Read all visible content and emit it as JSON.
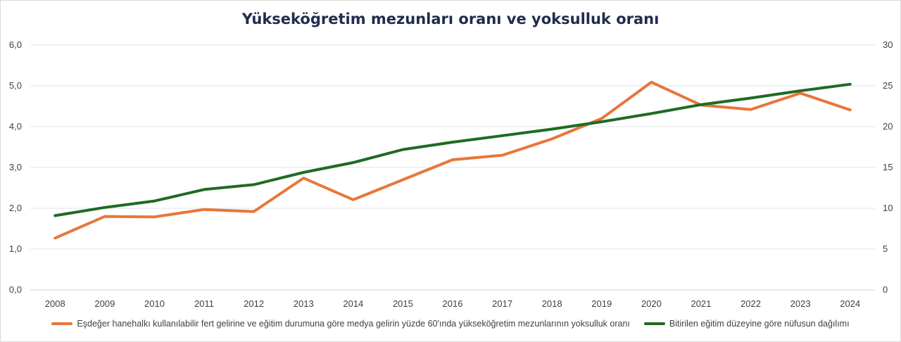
{
  "chart_data": {
    "type": "line",
    "title": "Yükseköğretim mezunları oranı ve yoksulluk oranı",
    "categories": [
      "2008",
      "2009",
      "2010",
      "2011",
      "2012",
      "2013",
      "2014",
      "2015",
      "2016",
      "2017",
      "2018",
      "2019",
      "2020",
      "2021",
      "2022",
      "2023",
      "2024"
    ],
    "y_left": {
      "ylim": [
        0,
        6
      ],
      "ticks": [
        "0,0",
        "1,0",
        "2,0",
        "3,0",
        "4,0",
        "5,0",
        "6,0"
      ]
    },
    "y_right": {
      "ylim": [
        0,
        30
      ],
      "ticks": [
        "0",
        "5",
        "10",
        "15",
        "20",
        "25",
        "30"
      ]
    },
    "grid": true,
    "legend_position": "bottom",
    "series": [
      {
        "name": "Eşdeğer hanehalkı kullanılabilir fert gelirine ve eğitim durumuna göre medya gelirin yüzde 60'ında yükseköğretim mezunlarının yoksulluk oranı",
        "axis": "left",
        "color": "#e8763a",
        "values": [
          1.27,
          1.8,
          1.79,
          1.97,
          1.92,
          2.74,
          2.21,
          2.7,
          3.19,
          3.3,
          3.7,
          4.2,
          5.09,
          4.53,
          4.42,
          4.82,
          4.41
        ]
      },
      {
        "name": "Bitirilen eğitim düzeyine göre nüfusun dağılımı",
        "axis": "right",
        "color": "#1e6b24",
        "values": [
          9.1,
          10.1,
          10.9,
          12.3,
          12.9,
          14.4,
          15.6,
          17.2,
          18.1,
          18.9,
          19.7,
          20.6,
          21.6,
          22.7,
          23.5,
          24.4,
          25.2
        ]
      }
    ]
  }
}
